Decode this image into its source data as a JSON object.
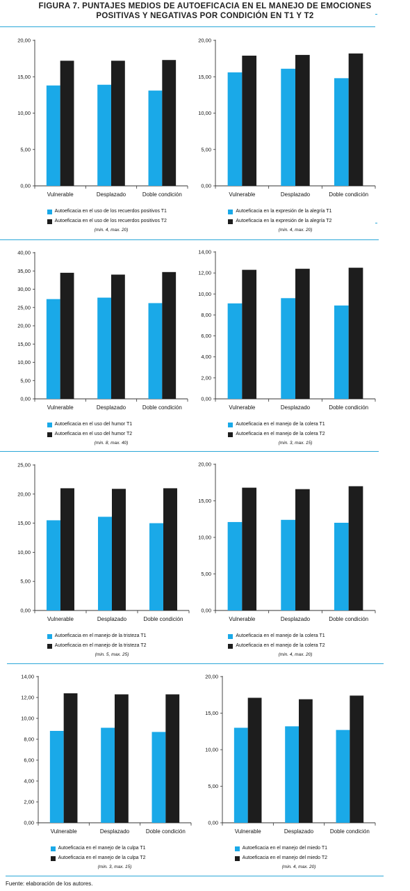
{
  "title": {
    "line1": "FIGURA 7. PUNTAJES MEDIOS DE AUTOEFICACIA EN EL MANEJO DE EMOCIONES",
    "line2": "POSITIVAS Y NEGATIVAS POR CONDICIÓN EN T1 Y T2"
  },
  "colors": {
    "t1": "#1aa9e8",
    "t2": "#1d1d1d",
    "rule": "#2aa7d8"
  },
  "source": "Fuente: elaboración de los autores.",
  "chart_data": [
    {
      "type": "bar",
      "categories": [
        "Vulnerable",
        "Desplazado",
        "Doble condición"
      ],
      "series": [
        {
          "name": "Autoeficacia en el uso de los recuerdos positivos T1",
          "values": [
            13.8,
            13.9,
            13.1
          ]
        },
        {
          "name": "Autoeficacia en el uso de los recuerdos positivos T2",
          "values": [
            17.2,
            17.2,
            17.3
          ]
        }
      ],
      "ylim": [
        0,
        20
      ],
      "yticks": [
        "0,00",
        "5,00",
        "10,00",
        "15,00",
        "20,00"
      ],
      "note": "(min. 4, max. 20)",
      "legend": "bottom"
    },
    {
      "type": "bar",
      "categories": [
        "Vulnerable",
        "Desplazado",
        "Doble condición"
      ],
      "series": [
        {
          "name": "Autoeficacia en la expresión de la alegría T1",
          "values": [
            15.6,
            16.1,
            14.8
          ]
        },
        {
          "name": "Autoeficacia en la expresión de la alegría T2",
          "values": [
            17.9,
            18.0,
            18.2
          ]
        }
      ],
      "ylim": [
        0,
        20
      ],
      "yticks": [
        "0,00",
        "5,00",
        "10,00",
        "15,00",
        "20,00"
      ],
      "note": "(min. 4, max. 20)",
      "legend": "bottom"
    },
    {
      "type": "bar",
      "categories": [
        "Vulnerable",
        "Desplazado",
        "Doble condición"
      ],
      "series": [
        {
          "name": "Autoeficacia en el uso del humor T1",
          "values": [
            27.3,
            27.7,
            26.2
          ]
        },
        {
          "name": "Autoeficacia en el uso del humor T2",
          "values": [
            34.5,
            34.0,
            34.7
          ]
        }
      ],
      "ylim": [
        0,
        40
      ],
      "yticks": [
        "0,00",
        "5,00",
        "10,00",
        "15,00",
        "20,00",
        "25,00",
        "30,00",
        "35,00",
        "40,00"
      ],
      "note": "(min. 8, max. 40)",
      "legend": "bottom"
    },
    {
      "type": "bar",
      "categories": [
        "Vulnerable",
        "Desplazado",
        "Doble condición"
      ],
      "series": [
        {
          "name": "Autoeficacia en el manejo de la colera T1",
          "values": [
            9.1,
            9.6,
            8.9
          ]
        },
        {
          "name": "Autoeficacia en el manejo de la colera T2",
          "values": [
            12.3,
            12.4,
            12.5
          ]
        }
      ],
      "ylim": [
        0,
        14
      ],
      "yticks": [
        "0,00",
        "2,00",
        "4,00",
        "6,00",
        "8,00",
        "10,00",
        "12,00",
        "14,00"
      ],
      "note": "(min. 3, max. 15)",
      "legend": "bottom"
    },
    {
      "type": "bar",
      "categories": [
        "Vulnerable",
        "Desplazado",
        "Doble condición"
      ],
      "series": [
        {
          "name": "Autoeficacia en el manejo de la tristeza T1",
          "values": [
            15.5,
            16.1,
            15.0
          ]
        },
        {
          "name": "Autoeficacia en el manejo de la tristeza T2",
          "values": [
            21.0,
            20.9,
            21.0
          ]
        }
      ],
      "ylim": [
        0,
        25
      ],
      "yticks": [
        "0,00",
        "5,00",
        "10,00",
        "15,00",
        "20,00",
        "25,00"
      ],
      "note": "(min. 5, max. 25)",
      "legend": "bottom"
    },
    {
      "type": "bar",
      "categories": [
        "Vulnerable",
        "Desplazado",
        "Doble condición"
      ],
      "series": [
        {
          "name": "Autoeficacia en el manejo de la colera T1",
          "values": [
            12.1,
            12.4,
            12.0
          ]
        },
        {
          "name": "Autoeficacia en el manejo de la colera T2",
          "values": [
            16.8,
            16.6,
            17.0
          ]
        }
      ],
      "ylim": [
        0,
        20
      ],
      "yticks": [
        "0,00",
        "5,00",
        "10,00",
        "15,00",
        "20,00"
      ],
      "note": "(min. 4, max. 20)",
      "legend": "bottom"
    },
    {
      "type": "bar",
      "categories": [
        "Vulnerable",
        "Desplazado",
        "Doble condición"
      ],
      "series": [
        {
          "name": "Autoeficacia en el manejo de la culpa T1",
          "values": [
            8.8,
            9.1,
            8.7
          ]
        },
        {
          "name": "Autoeficacia en el manejo de la culpa T2",
          "values": [
            12.4,
            12.3,
            12.3
          ]
        }
      ],
      "ylim": [
        0,
        14
      ],
      "yticks": [
        "0,00",
        "2,00",
        "4,00",
        "6,00",
        "8,00",
        "10,00",
        "12,00",
        "14,00"
      ],
      "note": "(min. 3, max. 15)",
      "legend": "bottom"
    },
    {
      "type": "bar",
      "categories": [
        "Vulnerable",
        "Desplazado",
        "Doble condición"
      ],
      "series": [
        {
          "name": "Autoeficacia en el manejo del miedo T1",
          "values": [
            13.0,
            13.2,
            12.7
          ]
        },
        {
          "name": "Autoeficacia en el manejo del miedo T2",
          "values": [
            17.1,
            16.9,
            17.4
          ]
        }
      ],
      "ylim": [
        0,
        20
      ],
      "yticks": [
        "0,00",
        "5,00",
        "10,00",
        "15,00",
        "20,00"
      ],
      "note": "(min. 4, max. 20)",
      "legend": "bottom"
    }
  ]
}
